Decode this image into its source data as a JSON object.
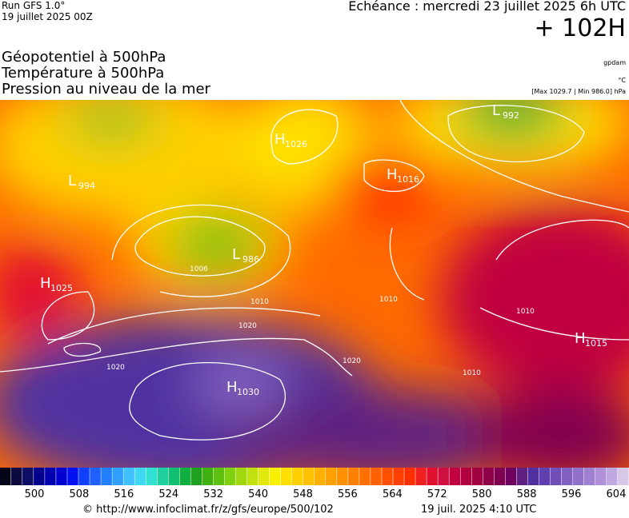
{
  "header": {
    "run": "Run GFS 1.0°",
    "run_date": "19 juillet 2025 00Z",
    "forecast": "Echéance : mercredi 23 juillet 2025 6h UTC",
    "lead": "+ 102H"
  },
  "layers": [
    "Géopotentiel à 500hPa",
    "Température à 500hPa",
    "Pression au niveau de la mer"
  ],
  "units": {
    "geopotential": "gpdam",
    "temperature": "°C",
    "pressure": "[Max 1029.7 | Min 986.0] hPa"
  },
  "centers": [
    {
      "kind": "H",
      "value": 1026
    },
    {
      "kind": "L",
      "value": 992
    },
    {
      "kind": "H",
      "value": 1016
    },
    {
      "kind": "L",
      "value": 994
    },
    {
      "kind": "L",
      "value": 986
    },
    {
      "kind": "H",
      "value": 1025
    },
    {
      "kind": "H",
      "value": 1030
    },
    {
      "kind": "H",
      "value": 1015
    }
  ],
  "isobar_labels": [
    1010,
    1010,
    1020,
    1020,
    1020,
    1010,
    1010,
    1006
  ],
  "colorbar": {
    "ticks": [
      500,
      508,
      516,
      524,
      532,
      540,
      548,
      556,
      564,
      572,
      580,
      588,
      596,
      604
    ],
    "colors": [
      "#05051a",
      "#0a0a40",
      "#0d0d66",
      "#00008c",
      "#0000b0",
      "#0000d0",
      "#0010f0",
      "#1040ff",
      "#2060ff",
      "#2080ff",
      "#30a0ff",
      "#40c0ff",
      "#40d8f0",
      "#30e0d0",
      "#20d0a0",
      "#10c070",
      "#10b040",
      "#20a020",
      "#40b010",
      "#60c010",
      "#80d010",
      "#a0d810",
      "#c0e010",
      "#e0e810",
      "#f8f000",
      "#ffe000",
      "#ffd000",
      "#ffc000",
      "#ffb000",
      "#ffa000",
      "#ff9000",
      "#ff8000",
      "#ff7000",
      "#ff6000",
      "#ff5000",
      "#ff4000",
      "#ff3000",
      "#f02020",
      "#e01030",
      "#d01040",
      "#c00040",
      "#b00040",
      "#a00040",
      "#900048",
      "#800050",
      "#700060",
      "#602080",
      "#5030a0",
      "#6040b0",
      "#7050b8",
      "#8060c0",
      "#9070c8",
      "#a080d0",
      "#b090d8",
      "#c0a8e0",
      "#d8c8e8"
    ]
  },
  "footer": {
    "url": "© http://www.infoclimat.fr/z/gfs/europe/500/102",
    "time": "19 juil. 2025  4:10 UTC"
  }
}
